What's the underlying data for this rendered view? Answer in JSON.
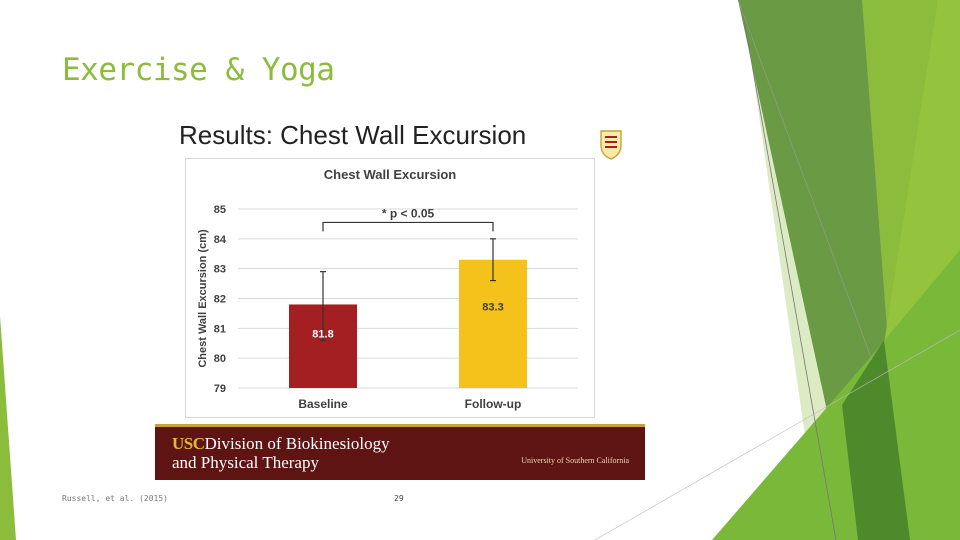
{
  "slide": {
    "title": "Exercise & Yoga",
    "citation": "Russell, et al. (2015)",
    "number": "29"
  },
  "image_panel": {
    "heading": "Results: Chest Wall Excursion",
    "banner": {
      "usc": "USC",
      "line1_rest": "Division of Biokinesiology",
      "line2": "and Physical Therapy",
      "university": "University of Southern California"
    }
  },
  "colors": {
    "accent_green": "#8cbc3c",
    "baseline_bar": "#a31f22",
    "followup_bar": "#f5c21b",
    "banner": "#5d1412",
    "banner_stripe": "#c9a13a"
  },
  "chart_data": {
    "type": "bar",
    "title": "Chest Wall Excursion",
    "xlabel": "",
    "ylabel": "Chest Wall Excursion (cm)",
    "ylim": [
      79,
      85
    ],
    "yticks": [
      79,
      80,
      81,
      82,
      83,
      84,
      85
    ],
    "grid": true,
    "categories": [
      "Baseline",
      "Follow-up"
    ],
    "values": [
      81.8,
      83.3
    ],
    "data_labels": [
      "81.8",
      "83.3"
    ],
    "error_bars": [
      [
        80.6,
        82.9
      ],
      [
        82.6,
        84.0
      ]
    ],
    "bar_colors": [
      "#a31f22",
      "#f5c21b"
    ],
    "annotation": "* p < 0.05"
  }
}
